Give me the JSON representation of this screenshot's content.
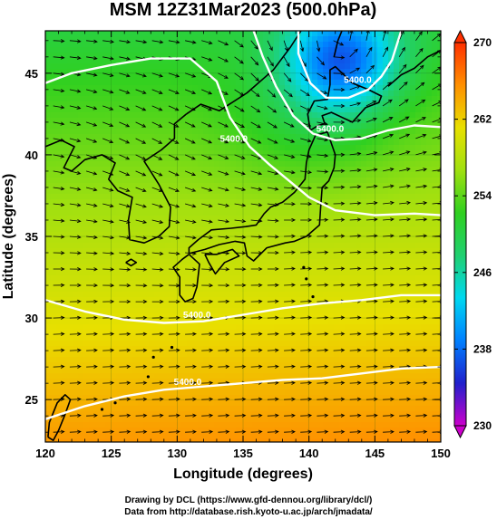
{
  "chart_data": {
    "type": "heatmap",
    "title": "MSM 12Z31Mar2023 (500.0hPa)",
    "xlabel": "Longitude (degrees)",
    "ylabel": "Latitude  (degrees)",
    "xlim": [
      120,
      150
    ],
    "ylim": [
      22.4,
      47.6
    ],
    "x_ticks": [
      "120",
      "125",
      "130",
      "135",
      "140",
      "145",
      "150"
    ],
    "x_tick_values": [
      120,
      125,
      130,
      135,
      140,
      145,
      150
    ],
    "y_ticks": [
      "25",
      "30",
      "35",
      "40",
      "45"
    ],
    "y_tick_values": [
      25,
      30,
      35,
      40,
      45
    ],
    "colorbar": {
      "range": [
        230,
        270
      ],
      "ticks": [
        "230",
        "238",
        "246",
        "254",
        "262",
        "270"
      ],
      "tick_values": [
        230,
        238,
        246,
        254,
        262,
        270
      ],
      "stops": [
        "#cc00cc",
        "#2020cc",
        "#0080ff",
        "#00d8f0",
        "#20d070",
        "#30d020",
        "#a0e010",
        "#e8e000",
        "#ff9000",
        "#ff3000"
      ]
    },
    "contours": [
      {
        "label": "5400.0",
        "points": [
          [
            120,
            44.4
          ],
          [
            122,
            45.0
          ],
          [
            125,
            45.5
          ],
          [
            128,
            45.9
          ],
          [
            131,
            45.9
          ],
          [
            133,
            44.5
          ],
          [
            134,
            42.3
          ],
          [
            135.5,
            40.5
          ],
          [
            137,
            39.4
          ],
          [
            138.5,
            38.4
          ],
          [
            140,
            37.4
          ],
          [
            142,
            36.6
          ],
          [
            145,
            36.3
          ],
          [
            148,
            36.4
          ],
          [
            150,
            36.3
          ]
        ],
        "label_at": [
          134.3,
          40.8
        ]
      },
      {
        "label": "5400.0",
        "points": [
          [
            135.8,
            47.6
          ],
          [
            136.5,
            46.0
          ],
          [
            137.5,
            44.2
          ],
          [
            138.8,
            42.4
          ],
          [
            140.3,
            41.3
          ],
          [
            142,
            40.9
          ],
          [
            144,
            41.0
          ],
          [
            146,
            41.5
          ],
          [
            148,
            41.8
          ],
          [
            150,
            41.7
          ]
        ],
        "label_at": [
          141.6,
          41.4
        ]
      },
      {
        "label": "5400.0",
        "points": [
          [
            139.2,
            47.6
          ],
          [
            139.2,
            46.2
          ],
          [
            140.1,
            44.4
          ],
          [
            141.3,
            43.5
          ],
          [
            143,
            43.5
          ],
          [
            144.5,
            44.0
          ],
          [
            145.5,
            44.8
          ],
          [
            146.3,
            45.8
          ],
          [
            147,
            47.6
          ]
        ],
        "label_at": [
          143.7,
          44.4
        ]
      },
      {
        "label": "5400.0",
        "points": [
          [
            120,
            31.1
          ],
          [
            123,
            30.4
          ],
          [
            126,
            29.9
          ],
          [
            129,
            29.7
          ],
          [
            132,
            29.8
          ],
          [
            135,
            30.2
          ],
          [
            138,
            30.6
          ],
          [
            141,
            30.9
          ],
          [
            144,
            31.1
          ],
          [
            147,
            31.4
          ],
          [
            150,
            31.4
          ]
        ],
        "label_at": [
          131.5,
          30.0
        ]
      },
      {
        "label": "5400.0",
        "points": [
          [
            120,
            23.8
          ],
          [
            123,
            24.6
          ],
          [
            126,
            25.2
          ],
          [
            129,
            25.6
          ],
          [
            132,
            25.8
          ],
          [
            135,
            26.0
          ],
          [
            138,
            26.2
          ],
          [
            141,
            26.3
          ],
          [
            144,
            26.6
          ],
          [
            147,
            26.9
          ],
          [
            150,
            27.0
          ]
        ],
        "label_at": [
          130.8,
          25.9
        ]
      }
    ],
    "colors": {
      "coast": "#000000",
      "contour": "#ffffff",
      "vector": "#000000"
    }
  },
  "credits": {
    "line1": "Drawing by DCL (https://www.gfd-dennou.org/library/dcl/)",
    "line2": "Data from http://database.rish.kyoto-u.ac.jp/arch/jmadata/"
  }
}
